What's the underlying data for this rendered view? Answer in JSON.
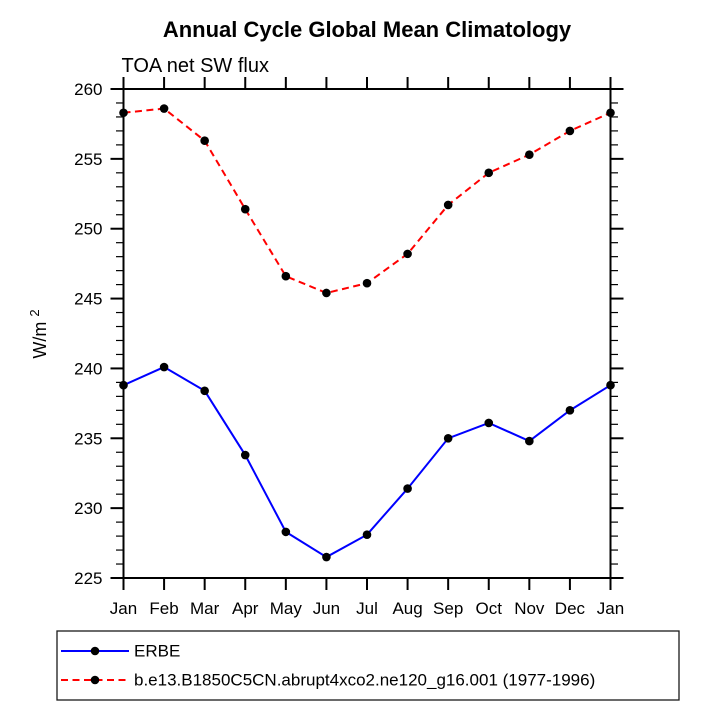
{
  "chart_data": {
    "type": "line",
    "title": "Annual Cycle Global Mean Climatology",
    "subtitle": "TOA net SW flux",
    "ylabel": {
      "base": "W/m",
      "sup": "2"
    },
    "x_categories": [
      "Jan",
      "Feb",
      "Mar",
      "Apr",
      "May",
      "Jun",
      "Jul",
      "Aug",
      "Sep",
      "Oct",
      "Nov",
      "Dec",
      "Jan"
    ],
    "ylim": [
      225,
      260
    ],
    "y_major_step": 5,
    "y_minor_step": 1,
    "y_tick_labels": [
      "225",
      "230",
      "235",
      "240",
      "245",
      "250",
      "255",
      "260"
    ],
    "grid": false,
    "legend_position": "bottom-left",
    "frame_color": "#000000",
    "marker_color": "#000000",
    "series": [
      {
        "name": "ERBE",
        "color": "#0000ff",
        "style": "solid",
        "marker": "circle",
        "values": [
          238.8,
          240.1,
          238.4,
          233.8,
          228.3,
          226.5,
          228.1,
          231.4,
          235.0,
          236.1,
          234.8,
          237.0,
          238.8
        ]
      },
      {
        "name": "b.e13.B1850C5CN.abrupt4xco2.ne120_g16.001 (1977-1996)",
        "color": "#ff0000",
        "style": "dashed",
        "marker": "circle",
        "values": [
          258.3,
          258.6,
          256.3,
          251.4,
          246.6,
          245.4,
          246.1,
          248.2,
          251.7,
          254.0,
          255.3,
          257.0,
          258.3
        ]
      }
    ]
  }
}
